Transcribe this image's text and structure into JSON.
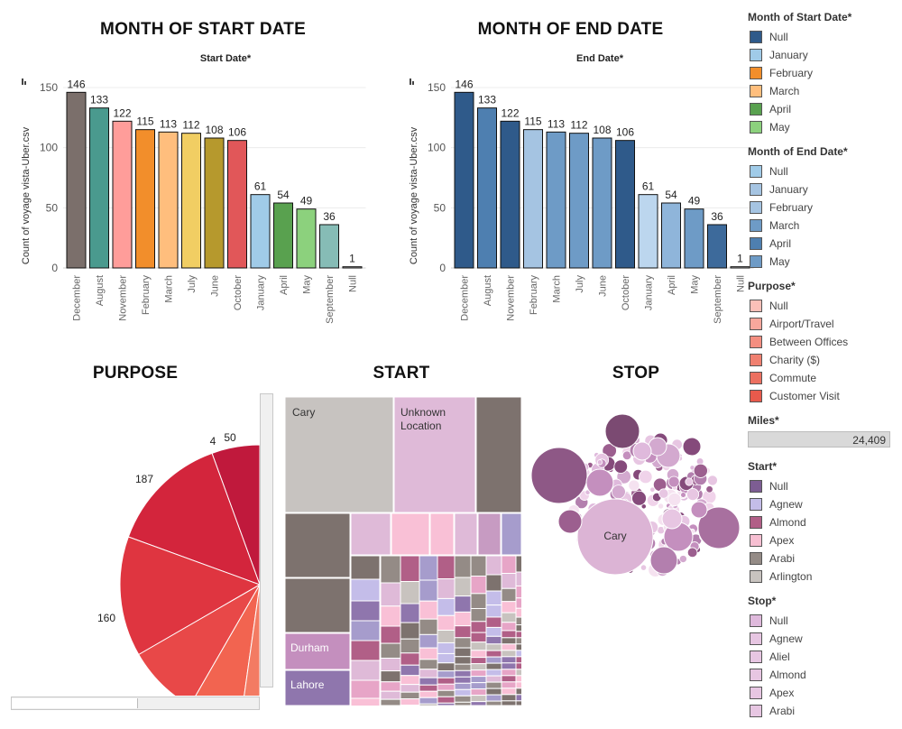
{
  "titles": {
    "start_chart": "MONTH OF START DATE",
    "start_sub": "Start Date*",
    "end_chart": "MONTH OF END DATE",
    "end_sub": "End Date*",
    "purpose": "PURPOSE",
    "start": "START",
    "stop": "STOP"
  },
  "chart_data": [
    {
      "type": "bar",
      "title": "MONTH OF START DATE",
      "subtitle": "Start Date*",
      "ylabel": "Count of voyage vista-Uber.csv",
      "ylim": [
        0,
        150
      ],
      "yticks": [
        0,
        50,
        100,
        150
      ],
      "categories": [
        "December",
        "August",
        "November",
        "February",
        "March",
        "July",
        "June",
        "October",
        "January",
        "April",
        "May",
        "September",
        "Null"
      ],
      "values": [
        146,
        133,
        122,
        115,
        113,
        112,
        108,
        106,
        61,
        54,
        49,
        36,
        1
      ],
      "colors": [
        "#7b6f6b",
        "#4a9a8e",
        "#ff9d9a",
        "#f28e2b",
        "#ffbe7d",
        "#f1ce63",
        "#b6992d",
        "#e15759",
        "#a0cbe8",
        "#59a14f",
        "#8cd17d",
        "#86bcb6",
        "#d0d0d0"
      ]
    },
    {
      "type": "bar",
      "title": "MONTH OF END DATE",
      "subtitle": "End Date*",
      "ylabel": "Count of voyage vista-Uber.csv",
      "ylim": [
        0,
        150
      ],
      "yticks": [
        0,
        50,
        100,
        150
      ],
      "categories": [
        "December",
        "August",
        "November",
        "February",
        "March",
        "July",
        "June",
        "October",
        "January",
        "April",
        "May",
        "September",
        "Null"
      ],
      "values": [
        146,
        133,
        122,
        115,
        113,
        112,
        108,
        106,
        61,
        54,
        49,
        36,
        1
      ],
      "colors": [
        "#2f5a8a",
        "#4e7fb0",
        "#2f5a8a",
        "#a5c4e2",
        "#6e9bc6",
        "#6e9bc6",
        "#6e9bc6",
        "#2f5a8a",
        "#bcd6ee",
        "#8fb5da",
        "#6e9bc6",
        "#3d6a9b",
        "#e8e8e8"
      ]
    },
    {
      "type": "pie",
      "title": "PURPOSE",
      "labels": [
        "50",
        "4",
        "187",
        "160"
      ],
      "values": [
        50,
        4,
        187,
        160
      ]
    }
  ],
  "legend": {
    "start_month": {
      "title": "Month of Start Date*",
      "items": [
        {
          "label": "Null",
          "color": "#2f5a8a"
        },
        {
          "label": "January",
          "color": "#a0cbe8"
        },
        {
          "label": "February",
          "color": "#f28e2b"
        },
        {
          "label": "March",
          "color": "#ffbe7d"
        },
        {
          "label": "April",
          "color": "#59a14f"
        },
        {
          "label": "May",
          "color": "#8cd17d"
        }
      ]
    },
    "end_month": {
      "title": "Month of End Date*",
      "items": [
        {
          "label": "Null",
          "color": "#a0cbe8"
        },
        {
          "label": "January",
          "color": "#a5c4e2"
        },
        {
          "label": "February",
          "color": "#a5c4e2"
        },
        {
          "label": "March",
          "color": "#6e9bc6"
        },
        {
          "label": "April",
          "color": "#4e7fb0"
        },
        {
          "label": "May",
          "color": "#6e9bc6"
        }
      ]
    },
    "purpose": {
      "title": "Purpose*",
      "items": [
        {
          "label": "Null",
          "color": "#fbc0b8"
        },
        {
          "label": "Airport/Travel",
          "color": "#f8a79c"
        },
        {
          "label": "Between Offices",
          "color": "#f48e80"
        },
        {
          "label": "Charity ($)",
          "color": "#f08070"
        },
        {
          "label": "Commute",
          "color": "#ec7060"
        },
        {
          "label": "Customer Visit",
          "color": "#e85a4c"
        }
      ]
    },
    "miles": {
      "title": "Miles*",
      "value": "24,409"
    },
    "start": {
      "title": "Start*",
      "items": [
        {
          "label": "Null",
          "color": "#7d5d93"
        },
        {
          "label": "Agnew",
          "color": "#c4bde9"
        },
        {
          "label": "Almond",
          "color": "#b15f87"
        },
        {
          "label": "Apex",
          "color": "#f7bfd2"
        },
        {
          "label": "Arabi",
          "color": "#948b86"
        },
        {
          "label": "Arlington",
          "color": "#c8c3bf"
        }
      ]
    },
    "stop": {
      "title": "Stop*",
      "items": [
        {
          "label": "Null",
          "color": "#dfb9dc"
        },
        {
          "label": "Agnew",
          "color": "#e7c6e2"
        },
        {
          "label": "Aliel",
          "color": "#e7c6e2"
        },
        {
          "label": "Almond",
          "color": "#e7c6e2"
        },
        {
          "label": "Apex",
          "color": "#e7c6e2"
        },
        {
          "label": "Arabi",
          "color": "#e7c6e2"
        }
      ]
    }
  },
  "treemap": {
    "labels": {
      "cary": "Cary",
      "unknown": "Unknown Location",
      "durham": "Durham",
      "lahore": "Lahore"
    }
  },
  "bubbles": {
    "cary_label": "Cary"
  }
}
